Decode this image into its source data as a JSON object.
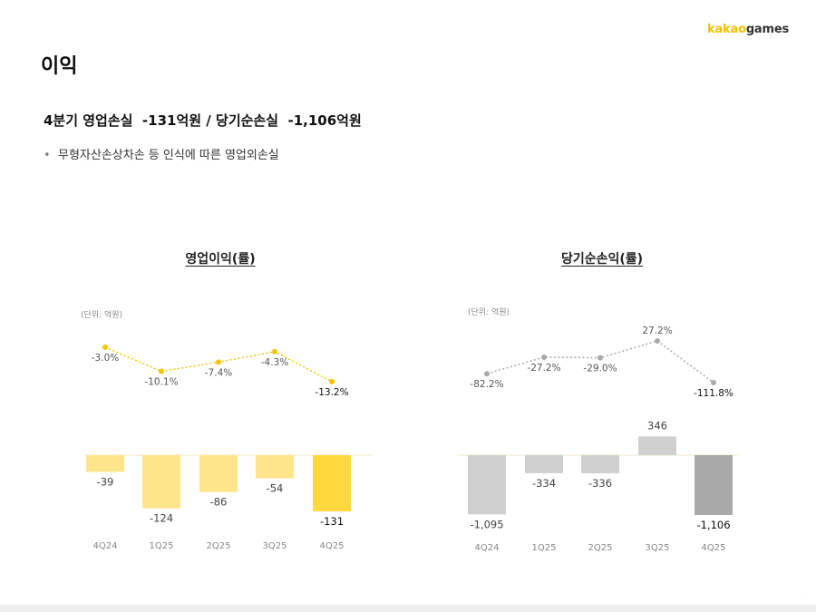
{
  "header": {
    "logo_kakao": "kakao",
    "logo_games": "games",
    "title": "이익"
  },
  "headline": {
    "part1": "4분기 영업손실",
    "value1": "-131억원",
    "sep": "/",
    "part2": "당기순손실",
    "value2": "-1,106억원"
  },
  "bullet": {
    "text": "무형자산손상차손 등 인식에 따른 영업외손실"
  },
  "chart_data": [
    {
      "type": "bar",
      "title": "영업이익(률)",
      "unit": "(단위: 억원)",
      "categories": [
        "4Q24",
        "1Q25",
        "2Q25",
        "3Q25",
        "4Q25"
      ],
      "values": [
        -39,
        -124,
        -86,
        -54,
        -131
      ],
      "value_labels": [
        "-39",
        "-124",
        "-86",
        "-54",
        "-131"
      ],
      "line_values": [
        -3.0,
        -10.1,
        -7.4,
        -4.3,
        -13.2
      ],
      "line_labels": [
        "-3.0%",
        "-10.1%",
        "-7.4%",
        "-4.3%",
        "-13.2%"
      ],
      "colors": {
        "bar": "#ffe58a",
        "bar_highlight": "#ffd93d",
        "line": "#f5c400"
      }
    },
    {
      "type": "bar",
      "title": "당기순손익(률)",
      "unit": "(단위: 억원)",
      "categories": [
        "4Q24",
        "1Q25",
        "2Q25",
        "3Q25",
        "4Q25"
      ],
      "values": [
        -1095,
        -334,
        -336,
        346,
        -1106
      ],
      "value_labels": [
        "-1,095",
        "-334",
        "-336",
        "346",
        "-1,106"
      ],
      "line_values": [
        -82.2,
        -27.2,
        -29.0,
        27.2,
        -111.8
      ],
      "line_labels": [
        "-82.2%",
        "-27.2%",
        "-29.0%",
        "27.2%",
        "-111.8%"
      ],
      "colors": {
        "bar": "#d0d0d0",
        "bar_highlight": "#a9a9a9",
        "line": "#a8a8a8"
      }
    }
  ]
}
